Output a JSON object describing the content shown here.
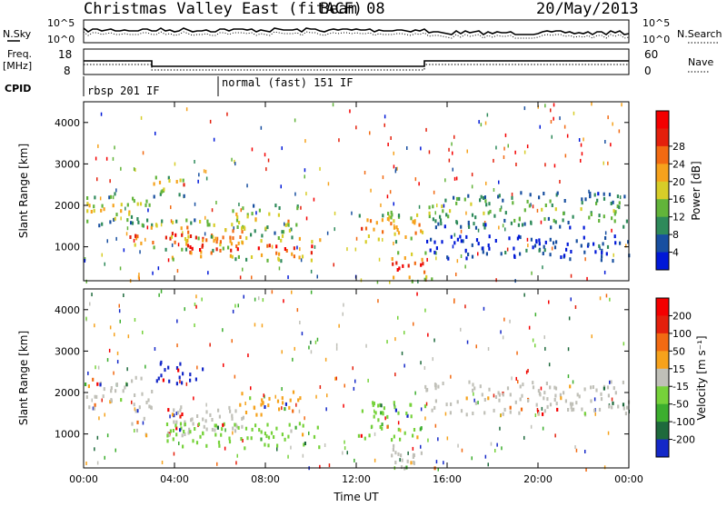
{
  "header": {
    "title": "Christmas Valley East (fitACF)",
    "beam": "Beam 08",
    "date": "20/May/2013"
  },
  "status_panel": {
    "nsky_label": "N.Sky",
    "nsearch_label": "N.Search",
    "left_scale_top": "10^5",
    "left_scale_bottom": "10^0",
    "right_scale_top": "10^5",
    "right_scale_bottom": "10^0",
    "freq_label_1": "Freq.",
    "freq_label_2": "[MHz]",
    "freq_ticks": [
      "18",
      "8"
    ],
    "nave_label": "Nave",
    "nave_ticks": [
      "60",
      "0"
    ],
    "cpid_label": "CPID",
    "cpid_segments": [
      {
        "label": "rbsp 201 IF",
        "start_hour": 0,
        "end_hour": 6
      },
      {
        "label": "normal (fast) 151 IF",
        "start_hour": 6,
        "end_hour": 24
      }
    ],
    "freq_steps": [
      {
        "start_hour": 0,
        "end_hour": 3,
        "mhz": 13.5
      },
      {
        "start_hour": 3,
        "end_hour": 15,
        "mhz": 10.5
      },
      {
        "start_hour": 15,
        "end_hour": 24,
        "mhz": 13.5
      }
    ]
  },
  "chart_data": [
    {
      "type": "heatmap",
      "name": "power",
      "xlabel": "Time UT",
      "ylabel": "Slant Range [km]",
      "x_range_hours": [
        0,
        24
      ],
      "ylim": [
        180,
        4500
      ],
      "x_ticks": [
        "00:00",
        "04:00",
        "08:00",
        "12:00",
        "16:00",
        "20:00",
        "00:00"
      ],
      "y_ticks": [
        1000,
        2000,
        3000,
        4000
      ],
      "colorbar_label": "Power [dB]",
      "colorbar_ticks": [
        4,
        8,
        12,
        16,
        20,
        24,
        28
      ],
      "colorbar_colors": [
        "#0018d8",
        "#184fa0",
        "#2e8a5a",
        "#62b43a",
        "#d7cd28",
        "#f6a21c",
        "#f26a12",
        "#e4200c",
        "#f40000"
      ],
      "regions": [
        {
          "t0": 0.0,
          "t1": 3.2,
          "r0": 1550,
          "r1": 2350,
          "level": 0.55
        },
        {
          "t0": 2.0,
          "t1": 7.0,
          "r0": 950,
          "r1": 1700,
          "level": 0.85
        },
        {
          "t0": 3.8,
          "t1": 10.5,
          "r0": 700,
          "r1": 1300,
          "level": 0.95
        },
        {
          "t0": 3.0,
          "t1": 4.8,
          "r0": 2250,
          "r1": 2800,
          "level": 0.7
        },
        {
          "t0": 6.5,
          "t1": 9.5,
          "r0": 1300,
          "r1": 2050,
          "level": 0.6
        },
        {
          "t0": 12.0,
          "t1": 15.0,
          "r0": 1100,
          "r1": 1900,
          "level": 0.75
        },
        {
          "t0": 13.5,
          "t1": 15.5,
          "r0": 200,
          "r1": 900,
          "level": 0.95
        },
        {
          "t0": 15.0,
          "t1": 24.0,
          "r0": 1500,
          "r1": 2350,
          "level": 0.45
        },
        {
          "t0": 15.0,
          "t1": 24.0,
          "r0": 700,
          "r1": 1300,
          "level": 0.15
        }
      ]
    },
    {
      "type": "heatmap",
      "name": "velocity",
      "xlabel": "Time UT",
      "ylabel": "Slant Range [km]",
      "x_range_hours": [
        0,
        24
      ],
      "ylim": [
        180,
        4500
      ],
      "x_ticks": [
        "00:00",
        "04:00",
        "08:00",
        "12:00",
        "16:00",
        "20:00",
        "00:00"
      ],
      "y_ticks": [
        1000,
        2000,
        3000,
        4000
      ],
      "colorbar_label": "Velocity [m s⁻¹]",
      "colorbar_ticks": [
        200,
        100,
        50,
        15,
        -15,
        -50,
        -100,
        -200
      ],
      "colorbar_colors": [
        "#1428c8",
        "#1e6a3c",
        "#3cae2e",
        "#76d23a",
        "#c0c0b8",
        "#f6a21c",
        "#f26a12",
        "#e4200c",
        "#f40000"
      ],
      "regions": [
        {
          "t0": 0.0,
          "t1": 3.0,
          "r0": 1600,
          "r1": 2400,
          "color": "#c0c0b8"
        },
        {
          "t0": 2.0,
          "t1": 7.0,
          "r0": 1000,
          "r1": 1700,
          "color": "#c0c0b8"
        },
        {
          "t0": 3.5,
          "t1": 10.5,
          "r0": 700,
          "r1": 1300,
          "color": "#76d23a"
        },
        {
          "t0": 3.0,
          "t1": 5.2,
          "r0": 2250,
          "r1": 2800,
          "color": "#1428c8"
        },
        {
          "t0": 6.8,
          "t1": 9.5,
          "r0": 1500,
          "r1": 2100,
          "color": "#f6a21c"
        },
        {
          "t0": 12.0,
          "t1": 15.0,
          "r0": 900,
          "r1": 1800,
          "color": "#76d23a"
        },
        {
          "t0": 13.5,
          "t1": 15.5,
          "r0": 200,
          "r1": 800,
          "color": "#c0c0b8"
        },
        {
          "t0": 15.0,
          "t1": 24.0,
          "r0": 1500,
          "r1": 2300,
          "color": "#c0c0b8"
        }
      ]
    }
  ]
}
